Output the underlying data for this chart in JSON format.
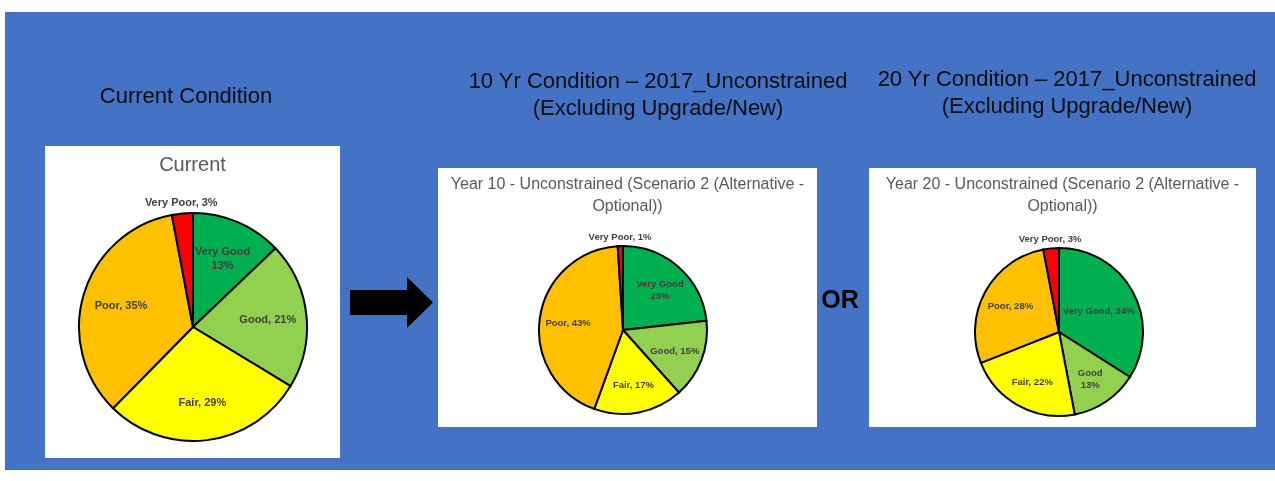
{
  "chart_data": [
    {
      "type": "pie",
      "title": "Current Condition",
      "subtitle": "Current",
      "categories": [
        "Very Good",
        "Good",
        "Fair",
        "Poor",
        "Very Poor"
      ],
      "values": [
        13,
        21,
        29,
        35,
        3
      ],
      "colors": [
        "#00b050",
        "#92d050",
        "#ffff00",
        "#ffc000",
        "#ff0000"
      ],
      "value_labels": [
        "13%",
        "21%",
        "29%",
        "35%",
        "3%"
      ]
    },
    {
      "type": "pie",
      "title": "10 Yr Condition – 2017_Unconstrained (Excluding Upgrade/New)",
      "subtitle": "Year 10 - Unconstrained (Scenario 2 (Alternative - Optional))",
      "categories": [
        "Very Good",
        "Good",
        "Fair",
        "Poor",
        "Very Poor"
      ],
      "values": [
        23,
        15,
        17,
        43,
        1
      ],
      "colors": [
        "#00b050",
        "#92d050",
        "#ffff00",
        "#ffc000",
        "#ff0000"
      ],
      "value_labels": [
        "23%",
        "15%",
        "17%",
        "43%",
        "1%"
      ]
    },
    {
      "type": "pie",
      "title": "20 Yr Condition – 2017_Unconstrained (Excluding Upgrade/New)",
      "subtitle": "Year 20 - Unconstrained (Scenario 2 (Alternative - Optional))",
      "categories": [
        "Very Good",
        "Good",
        "Fair",
        "Poor",
        "Very Poor"
      ],
      "values": [
        34,
        13,
        22,
        28,
        3
      ],
      "colors": [
        "#00b050",
        "#92d050",
        "#ffff00",
        "#ffc000",
        "#ff0000"
      ],
      "value_labels": [
        "34%",
        "13%",
        "22%",
        "28%",
        "3%"
      ],
      "annotations": [
        "OR"
      ]
    }
  ]
}
